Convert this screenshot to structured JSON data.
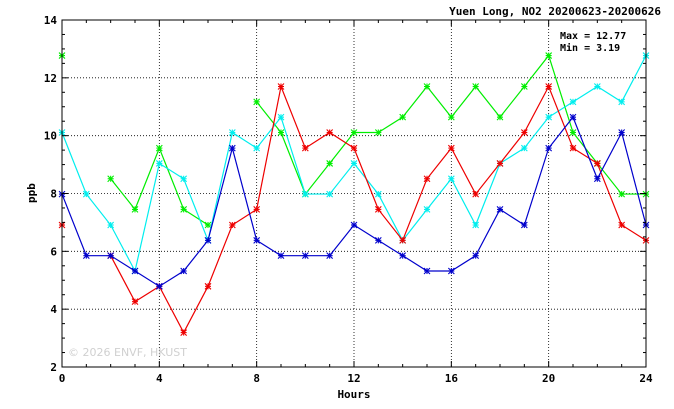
{
  "chart_data": {
    "type": "line",
    "title": "Yuen Long, NO2 20200623-20200626",
    "xlabel": "Hours",
    "ylabel": "ppb",
    "xlim": [
      0,
      24
    ],
    "ylim": [
      2,
      14
    ],
    "xticks": [
      0,
      4,
      8,
      12,
      16,
      20,
      24
    ],
    "yticks": [
      2,
      4,
      6,
      8,
      10,
      12,
      14
    ],
    "grid": true,
    "stats": {
      "max": "Max = 12.77",
      "min": "Min =  3.19"
    },
    "watermark": "© 2026 ENVF, HKUST",
    "x": [
      0,
      1,
      2,
      3,
      4,
      5,
      6,
      7,
      8,
      9,
      10,
      11,
      12,
      13,
      14,
      15,
      16,
      17,
      18,
      19,
      20,
      21,
      22,
      23,
      24
    ],
    "series": [
      {
        "color": "#00ee00",
        "values": [
          12.77,
          null,
          8.51,
          7.45,
          9.57,
          7.45,
          6.91,
          null,
          11.17,
          10.11,
          7.98,
          9.04,
          10.11,
          10.11,
          10.64,
          11.7,
          10.64,
          11.7,
          10.64,
          11.7,
          12.77,
          10.11,
          9.04,
          7.98,
          7.98
        ]
      },
      {
        "color": "#00eeee",
        "values": [
          10.11,
          7.98,
          6.91,
          5.32,
          9.04,
          8.51,
          6.38,
          10.11,
          9.57,
          10.64,
          7.98,
          7.98,
          9.04,
          7.98,
          6.38,
          7.45,
          8.51,
          6.91,
          9.04,
          9.57,
          10.64,
          11.17,
          11.7,
          11.17,
          12.77
        ]
      },
      {
        "color": "#ee0000",
        "values": [
          6.91,
          null,
          5.85,
          4.26,
          4.79,
          3.19,
          4.79,
          6.91,
          7.45,
          11.7,
          9.57,
          10.11,
          9.57,
          7.45,
          6.38,
          8.51,
          9.57,
          7.98,
          9.04,
          10.11,
          11.7,
          9.57,
          9.04,
          6.91,
          6.38
        ]
      },
      {
        "color": "#0000cc",
        "values": [
          7.98,
          5.85,
          5.85,
          5.32,
          4.79,
          5.32,
          6.38,
          9.57,
          6.38,
          5.85,
          5.85,
          5.85,
          6.91,
          6.38,
          5.85,
          5.32,
          5.32,
          5.85,
          7.45,
          6.91,
          9.57,
          10.64,
          8.51,
          10.11,
          6.91
        ]
      }
    ]
  }
}
